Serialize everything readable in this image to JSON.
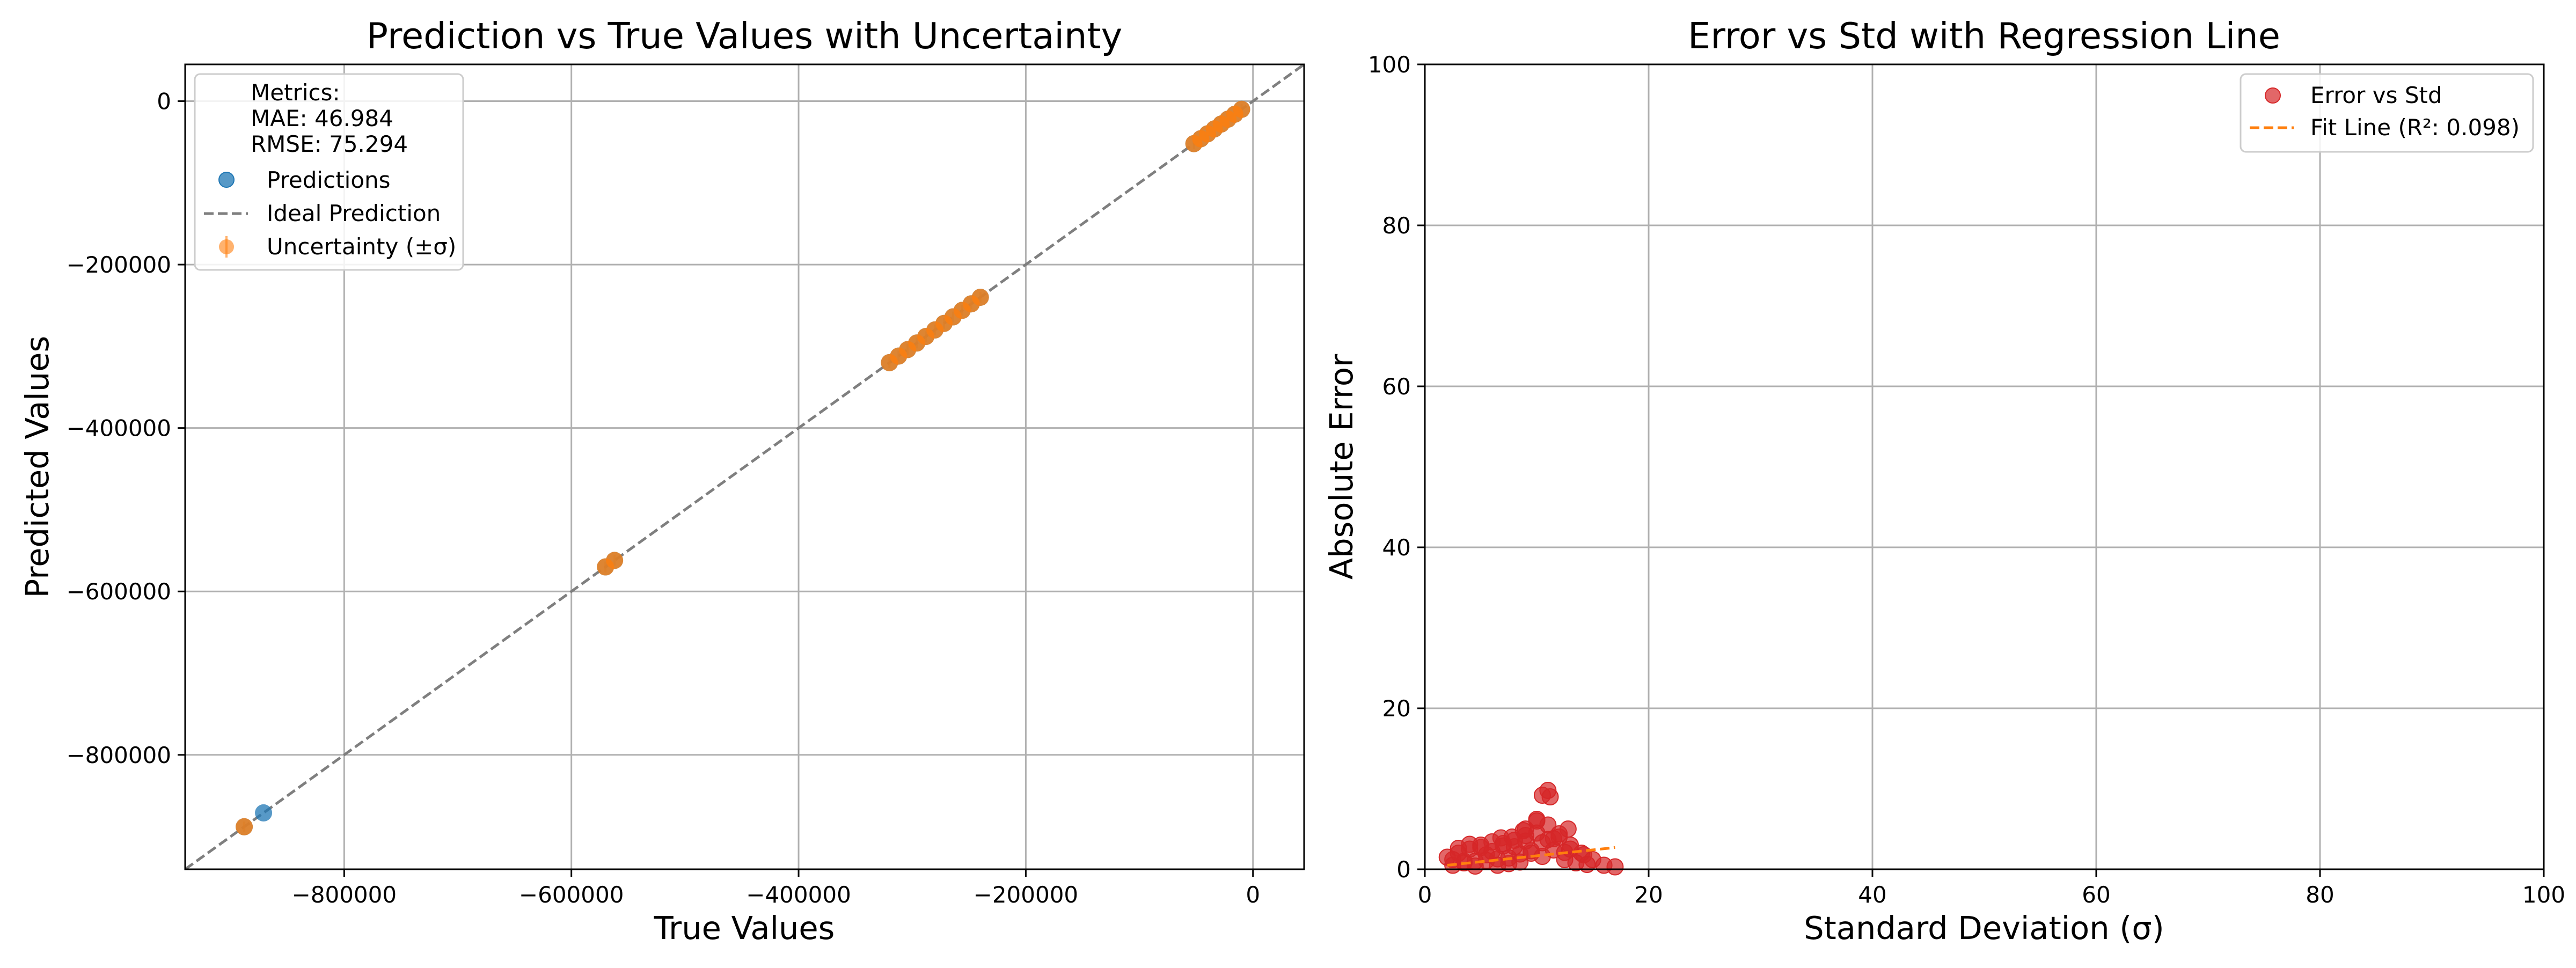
{
  "chart_data": [
    {
      "type": "scatter",
      "title": "Prediction vs True Values with Uncertainty",
      "xlabel": "True Values",
      "ylabel": "Predicted Values",
      "xlim": [
        -940000,
        45000
      ],
      "ylim": [
        -940000,
        45000
      ],
      "xticks": [
        -800000,
        -600000,
        -400000,
        -200000,
        0
      ],
      "xtick_labels": [
        "−800000",
        "−600000",
        "−400000",
        "−200000",
        "0"
      ],
      "yticks": [
        -800000,
        -600000,
        -400000,
        -200000,
        0
      ],
      "ytick_labels": [
        "−800000",
        "−600000",
        "−400000",
        "−200000",
        "0"
      ],
      "grid": true,
      "legend_position": "top-left",
      "metrics_text": [
        "Metrics:",
        "MAE: 46.984",
        "RMSE: 75.294"
      ],
      "series": [
        {
          "name": "Predictions",
          "color": "#1f77b4",
          "x": [
            -888000,
            -871000,
            -570000,
            -562000,
            -320000,
            -312000,
            -304000,
            -296000,
            -288000,
            -280000,
            -272000,
            -264000,
            -256000,
            -248000,
            -240000,
            -52000,
            -46000,
            -40000,
            -34000,
            -28000,
            -22000,
            -16000,
            -10000
          ],
          "y": [
            -888000,
            -871000,
            -570000,
            -562000,
            -320000,
            -312000,
            -304000,
            -296000,
            -288000,
            -280000,
            -272000,
            -264000,
            -256000,
            -248000,
            -240000,
            -52000,
            -46000,
            -40000,
            -34000,
            -28000,
            -22000,
            -16000,
            -10000
          ]
        },
        {
          "name": "Ideal Prediction",
          "color": "#7f7f7f",
          "line_style": "dashed",
          "x": [
            -940000,
            45000
          ],
          "y": [
            -940000,
            45000
          ]
        },
        {
          "name": "Uncertainty (±σ)",
          "color": "#ff7f0e",
          "x": [
            -888000,
            -570000,
            -562000,
            -320000,
            -312000,
            -304000,
            -296000,
            -288000,
            -280000,
            -272000,
            -264000,
            -256000,
            -248000,
            -240000,
            -52000,
            -46000,
            -40000,
            -34000,
            -28000,
            -22000,
            -16000,
            -10000
          ],
          "y": [
            -888000,
            -570000,
            -562000,
            -320000,
            -312000,
            -304000,
            -296000,
            -288000,
            -280000,
            -272000,
            -264000,
            -256000,
            -248000,
            -240000,
            -52000,
            -46000,
            -40000,
            -34000,
            -28000,
            -22000,
            -16000,
            -10000
          ]
        }
      ]
    },
    {
      "type": "scatter",
      "title": "Error vs Std with Regression Line",
      "xlabel": "Standard Deviation (σ)",
      "ylabel": "Absolute Error",
      "xlim": [
        0,
        100
      ],
      "ylim": [
        0,
        100
      ],
      "xticks": [
        0,
        20,
        40,
        60,
        80,
        100
      ],
      "yticks": [
        0,
        20,
        40,
        60,
        80,
        100
      ],
      "grid": true,
      "legend_position": "top-right",
      "series": [
        {
          "name": "Error vs Std",
          "color": "#d62728",
          "x": [
            2,
            2.5,
            3,
            3.5,
            4,
            4.5,
            5,
            5.5,
            6,
            6.5,
            7,
            7.5,
            8,
            8.5,
            9,
            9.5,
            10,
            10.5,
            11,
            11.5,
            12,
            12.5,
            13,
            13.5,
            14,
            14.5,
            15,
            16,
            17,
            2.5,
            3.5,
            4.5,
            5.5,
            6.5,
            7.5,
            8.5,
            9.5,
            10.5,
            11.5,
            12.5,
            3,
            4,
            5,
            6,
            7,
            8,
            9,
            10,
            11,
            12,
            13,
            10.5,
            11,
            11.2,
            10,
            9,
            12.8,
            14.2,
            8.8,
            7.8,
            6.8
          ],
          "y": [
            1.5,
            1.2,
            2.0,
            0.8,
            2.5,
            1.0,
            3.0,
            1.8,
            2.2,
            0.5,
            3.2,
            1.4,
            2.8,
            0.9,
            3.5,
            2.0,
            4.5,
            1.6,
            5.5,
            2.4,
            4.0,
            1.2,
            3.0,
            0.8,
            2.0,
            0.6,
            1.2,
            0.5,
            0.3,
            0.5,
            1.0,
            0.4,
            1.1,
            1.3,
            0.7,
            1.9,
            2.3,
            3.3,
            3.8,
            2.1,
            2.6,
            3.1,
            2.7,
            3.4,
            2.9,
            3.6,
            4.2,
            6.0,
            3.7,
            4.4,
            2.5,
            9.2,
            9.8,
            9.0,
            6.2,
            5.0,
            5.0,
            1.8,
            4.8,
            4.0,
            3.9
          ]
        },
        {
          "name": "Fit Line (R²: 0.098)",
          "color": "#ff7f0e",
          "line_style": "dashed",
          "x": [
            2,
            17
          ],
          "y": [
            0.5,
            2.7
          ]
        }
      ]
    }
  ]
}
